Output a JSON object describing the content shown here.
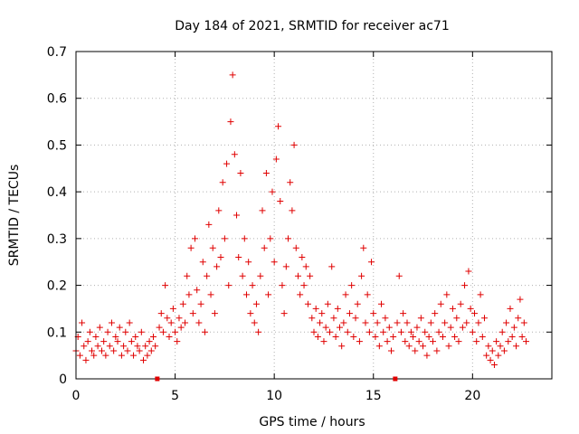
{
  "chart_data": {
    "type": "scatter",
    "title": "Day 184 of 2021, SRMTID for receiver ac71",
    "xlabel": "GPS time / hours",
    "ylabel": "SRMTID / TECUs",
    "xlim": [
      0,
      24
    ],
    "ylim": [
      0,
      0.7
    ],
    "xticks": [
      0,
      5,
      10,
      15,
      20
    ],
    "xtick_labels": [
      "0",
      "5",
      "10",
      "15",
      "20"
    ],
    "yticks": [
      0,
      0.1,
      0.2,
      0.3,
      0.4,
      0.5,
      0.6,
      0.7
    ],
    "ytick_labels": [
      "0",
      "0.1",
      "0.2",
      "0.3",
      "0.4",
      "0.5",
      "0.6",
      "0.7"
    ],
    "grid": true,
    "marker": "+",
    "color": "#e00000",
    "baseline_markers_x": [
      4.1,
      16.1
    ],
    "series": [
      {
        "name": "SRMTID",
        "points": [
          [
            0.0,
            0.06
          ],
          [
            0.1,
            0.09
          ],
          [
            0.2,
            0.05
          ],
          [
            0.3,
            0.12
          ],
          [
            0.4,
            0.07
          ],
          [
            0.5,
            0.04
          ],
          [
            0.6,
            0.08
          ],
          [
            0.7,
            0.1
          ],
          [
            0.8,
            0.06
          ],
          [
            0.9,
            0.05
          ],
          [
            1.0,
            0.09
          ],
          [
            1.1,
            0.07
          ],
          [
            1.2,
            0.11
          ],
          [
            1.3,
            0.06
          ],
          [
            1.4,
            0.08
          ],
          [
            1.5,
            0.05
          ],
          [
            1.6,
            0.1
          ],
          [
            1.7,
            0.07
          ],
          [
            1.8,
            0.12
          ],
          [
            1.9,
            0.06
          ],
          [
            2.0,
            0.09
          ],
          [
            2.1,
            0.08
          ],
          [
            2.2,
            0.11
          ],
          [
            2.3,
            0.05
          ],
          [
            2.4,
            0.07
          ],
          [
            2.5,
            0.1
          ],
          [
            2.6,
            0.06
          ],
          [
            2.7,
            0.12
          ],
          [
            2.8,
            0.08
          ],
          [
            2.9,
            0.05
          ],
          [
            3.0,
            0.09
          ],
          [
            3.1,
            0.07
          ],
          [
            3.2,
            0.06
          ],
          [
            3.3,
            0.1
          ],
          [
            3.4,
            0.04
          ],
          [
            3.5,
            0.07
          ],
          [
            3.6,
            0.05
          ],
          [
            3.7,
            0.08
          ],
          [
            3.8,
            0.06
          ],
          [
            3.9,
            0.09
          ],
          [
            4.0,
            0.07
          ],
          [
            4.2,
            0.11
          ],
          [
            4.3,
            0.14
          ],
          [
            4.4,
            0.1
          ],
          [
            4.5,
            0.2
          ],
          [
            4.6,
            0.13
          ],
          [
            4.7,
            0.09
          ],
          [
            4.8,
            0.12
          ],
          [
            4.9,
            0.15
          ],
          [
            5.0,
            0.1
          ],
          [
            5.1,
            0.08
          ],
          [
            5.2,
            0.13
          ],
          [
            5.3,
            0.11
          ],
          [
            5.4,
            0.16
          ],
          [
            5.5,
            0.12
          ],
          [
            5.6,
            0.22
          ],
          [
            5.7,
            0.18
          ],
          [
            5.8,
            0.28
          ],
          [
            5.9,
            0.14
          ],
          [
            6.0,
            0.3
          ],
          [
            6.1,
            0.19
          ],
          [
            6.2,
            0.12
          ],
          [
            6.3,
            0.16
          ],
          [
            6.4,
            0.25
          ],
          [
            6.5,
            0.1
          ],
          [
            6.6,
            0.22
          ],
          [
            6.7,
            0.33
          ],
          [
            6.8,
            0.18
          ],
          [
            6.9,
            0.28
          ],
          [
            7.0,
            0.14
          ],
          [
            7.1,
            0.24
          ],
          [
            7.2,
            0.36
          ],
          [
            7.3,
            0.26
          ],
          [
            7.4,
            0.42
          ],
          [
            7.5,
            0.3
          ],
          [
            7.6,
            0.46
          ],
          [
            7.7,
            0.2
          ],
          [
            7.8,
            0.55
          ],
          [
            7.9,
            0.65
          ],
          [
            8.0,
            0.48
          ],
          [
            8.1,
            0.35
          ],
          [
            8.2,
            0.26
          ],
          [
            8.3,
            0.44
          ],
          [
            8.4,
            0.22
          ],
          [
            8.5,
            0.3
          ],
          [
            8.6,
            0.18
          ],
          [
            8.7,
            0.25
          ],
          [
            8.8,
            0.14
          ],
          [
            8.9,
            0.2
          ],
          [
            9.0,
            0.12
          ],
          [
            9.1,
            0.16
          ],
          [
            9.2,
            0.1
          ],
          [
            9.3,
            0.22
          ],
          [
            9.4,
            0.36
          ],
          [
            9.5,
            0.28
          ],
          [
            9.6,
            0.44
          ],
          [
            9.7,
            0.18
          ],
          [
            9.8,
            0.3
          ],
          [
            9.9,
            0.4
          ],
          [
            10.0,
            0.25
          ],
          [
            10.1,
            0.47
          ],
          [
            10.2,
            0.54
          ],
          [
            10.3,
            0.38
          ],
          [
            10.4,
            0.2
          ],
          [
            10.5,
            0.14
          ],
          [
            10.6,
            0.24
          ],
          [
            10.7,
            0.3
          ],
          [
            10.8,
            0.42
          ],
          [
            10.9,
            0.36
          ],
          [
            11.0,
            0.5
          ],
          [
            11.1,
            0.28
          ],
          [
            11.2,
            0.22
          ],
          [
            11.3,
            0.18
          ],
          [
            11.4,
            0.26
          ],
          [
            11.5,
            0.2
          ],
          [
            11.6,
            0.24
          ],
          [
            11.7,
            0.16
          ],
          [
            11.8,
            0.22
          ],
          [
            11.9,
            0.13
          ],
          [
            12.0,
            0.1
          ],
          [
            12.1,
            0.15
          ],
          [
            12.2,
            0.09
          ],
          [
            12.3,
            0.12
          ],
          [
            12.4,
            0.14
          ],
          [
            12.5,
            0.08
          ],
          [
            12.6,
            0.11
          ],
          [
            12.7,
            0.16
          ],
          [
            12.8,
            0.1
          ],
          [
            12.9,
            0.24
          ],
          [
            13.0,
            0.13
          ],
          [
            13.1,
            0.09
          ],
          [
            13.2,
            0.15
          ],
          [
            13.3,
            0.11
          ],
          [
            13.4,
            0.07
          ],
          [
            13.5,
            0.12
          ],
          [
            13.6,
            0.18
          ],
          [
            13.7,
            0.1
          ],
          [
            13.8,
            0.14
          ],
          [
            13.9,
            0.2
          ],
          [
            14.0,
            0.09
          ],
          [
            14.1,
            0.13
          ],
          [
            14.2,
            0.16
          ],
          [
            14.3,
            0.08
          ],
          [
            14.4,
            0.22
          ],
          [
            14.5,
            0.28
          ],
          [
            14.6,
            0.12
          ],
          [
            14.7,
            0.18
          ],
          [
            14.8,
            0.1
          ],
          [
            14.9,
            0.25
          ],
          [
            15.0,
            0.14
          ],
          [
            15.1,
            0.09
          ],
          [
            15.2,
            0.12
          ],
          [
            15.3,
            0.07
          ],
          [
            15.4,
            0.16
          ],
          [
            15.5,
            0.1
          ],
          [
            15.6,
            0.13
          ],
          [
            15.7,
            0.08
          ],
          [
            15.8,
            0.11
          ],
          [
            15.9,
            0.06
          ],
          [
            16.0,
            0.09
          ],
          [
            16.2,
            0.12
          ],
          [
            16.3,
            0.22
          ],
          [
            16.4,
            0.1
          ],
          [
            16.5,
            0.14
          ],
          [
            16.6,
            0.08
          ],
          [
            16.7,
            0.12
          ],
          [
            16.8,
            0.07
          ],
          [
            16.9,
            0.1
          ],
          [
            17.0,
            0.09
          ],
          [
            17.1,
            0.06
          ],
          [
            17.2,
            0.11
          ],
          [
            17.3,
            0.08
          ],
          [
            17.4,
            0.13
          ],
          [
            17.5,
            0.07
          ],
          [
            17.6,
            0.1
          ],
          [
            17.7,
            0.05
          ],
          [
            17.8,
            0.09
          ],
          [
            17.9,
            0.12
          ],
          [
            18.0,
            0.08
          ],
          [
            18.1,
            0.14
          ],
          [
            18.2,
            0.06
          ],
          [
            18.3,
            0.1
          ],
          [
            18.4,
            0.16
          ],
          [
            18.5,
            0.09
          ],
          [
            18.6,
            0.12
          ],
          [
            18.7,
            0.18
          ],
          [
            18.8,
            0.07
          ],
          [
            18.9,
            0.11
          ],
          [
            19.0,
            0.15
          ],
          [
            19.1,
            0.09
          ],
          [
            19.2,
            0.13
          ],
          [
            19.3,
            0.08
          ],
          [
            19.4,
            0.16
          ],
          [
            19.5,
            0.11
          ],
          [
            19.6,
            0.2
          ],
          [
            19.7,
            0.12
          ],
          [
            19.8,
            0.23
          ],
          [
            19.9,
            0.15
          ],
          [
            20.0,
            0.1
          ],
          [
            20.1,
            0.14
          ],
          [
            20.2,
            0.08
          ],
          [
            20.3,
            0.12
          ],
          [
            20.4,
            0.18
          ],
          [
            20.5,
            0.09
          ],
          [
            20.6,
            0.13
          ],
          [
            20.7,
            0.05
          ],
          [
            20.8,
            0.07
          ],
          [
            20.9,
            0.04
          ],
          [
            21.0,
            0.06
          ],
          [
            21.1,
            0.03
          ],
          [
            21.2,
            0.08
          ],
          [
            21.3,
            0.05
          ],
          [
            21.4,
            0.07
          ],
          [
            21.5,
            0.1
          ],
          [
            21.6,
            0.06
          ],
          [
            21.7,
            0.12
          ],
          [
            21.8,
            0.08
          ],
          [
            21.9,
            0.15
          ],
          [
            22.0,
            0.09
          ],
          [
            22.1,
            0.11
          ],
          [
            22.2,
            0.07
          ],
          [
            22.3,
            0.13
          ],
          [
            22.4,
            0.17
          ],
          [
            22.5,
            0.09
          ],
          [
            22.6,
            0.12
          ],
          [
            22.7,
            0.08
          ]
        ]
      }
    ]
  }
}
